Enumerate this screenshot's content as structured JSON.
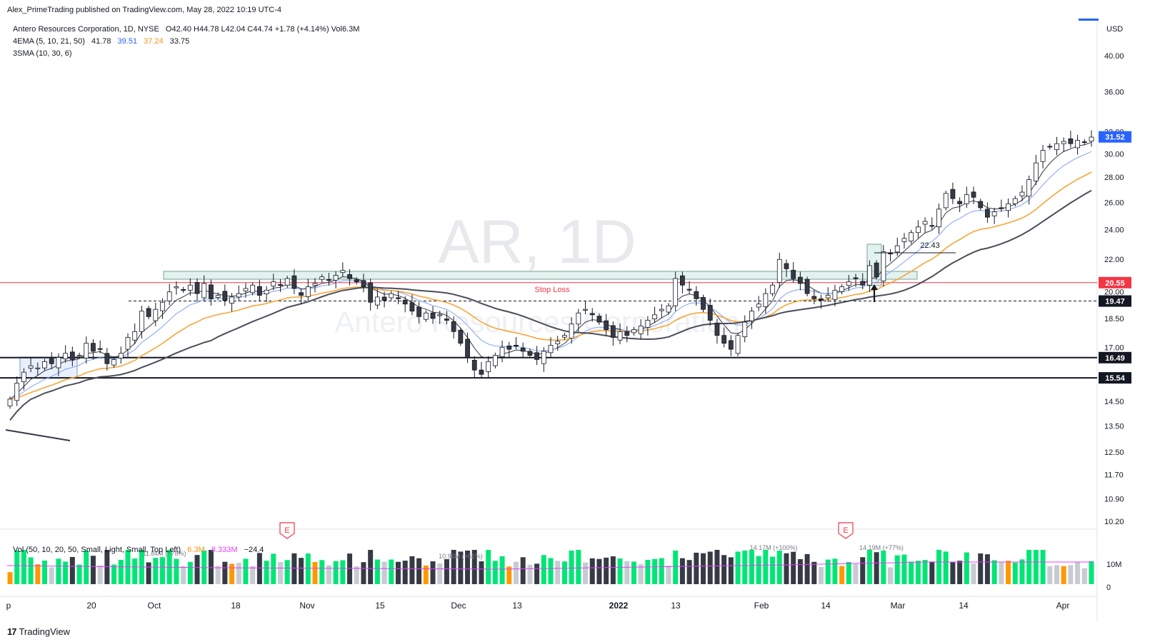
{
  "publisher_line": "Alex_PrimeTrading published on TradingView.com, May 28, 2022 10:19 UTC-4",
  "legend": {
    "symbol_line": {
      "name": "Antero Resources Corporation, 1D, NYSE",
      "ohlc": "O42.40  H44.78  L42.04  C44.74  +1.78 (+4.14%)  Vol6.3M"
    },
    "ema": {
      "label": "4EMA (5, 10, 21, 50)",
      "values": [
        "41.78",
        "39.51",
        "37.24",
        "33.75"
      ],
      "colors": [
        "#131722",
        "#2962ff",
        "#f7931a",
        "#131722"
      ]
    },
    "sma": {
      "label": "3SMA (10, 30, 6)"
    }
  },
  "watermark": {
    "symbol": "AR, 1D",
    "name": "Antero Resources Corporation"
  },
  "currency": "USD",
  "annotations": {
    "stop_loss": "Stop Loss",
    "target_value": "22.43"
  },
  "price_scale": {
    "ticks": [
      "40.00",
      "36.00",
      "32.00",
      "30.00",
      "28.00",
      "26.00",
      "24.00",
      "22.00",
      "20.00",
      "18.50",
      "17.00",
      "14.50",
      "13.50",
      "12.50",
      "11.70",
      "10.90",
      "10.20"
    ],
    "badges": [
      {
        "value": "31.52",
        "color": "#2962ff"
      },
      {
        "value": "20.55",
        "color": "#f23645"
      },
      {
        "value": "19.47",
        "color": "#131722"
      },
      {
        "value": "16.49",
        "color": "#131722"
      },
      {
        "value": "15.54",
        "color": "#131722"
      }
    ]
  },
  "volume": {
    "legend": {
      "label": "Vol (50, 10, 20, 50, Small, Light, Small, Top Left)",
      "values": [
        "6.3M",
        "8.333M",
        "−24.4"
      ],
      "colors": [
        "#f7931a",
        "#e040fb",
        "#131722"
      ]
    },
    "scale_ticks": [
      "10M",
      "0"
    ],
    "callouts": [
      "11.84M (+78%)",
      "10.96M (+61%)",
      "14.17M (+100%)",
      "14.19M (+77%)"
    ],
    "colors": {
      "up_strong": "#00e676",
      "down_strong": "#363a45",
      "low": "#ff9800",
      "neutral": "#c8cbd2"
    }
  },
  "earnings_markers": [
    "E",
    "E"
  ],
  "time_axis": [
    "p",
    "20",
    "Oct",
    "18",
    "Nov",
    "15",
    "Dec",
    "13",
    "2022",
    "13",
    "Feb",
    "14",
    "Mar",
    "14",
    "Apr"
  ],
  "footer_brand": "TradingView",
  "chart_data": {
    "type": "candlestick",
    "title": "Antero Resources Corporation, 1D, NYSE",
    "ylabel": "USD",
    "y_scale": "log",
    "ylim": [
      10.0,
      42.0
    ],
    "x_axis_labels": [
      "p",
      "20",
      "Oct",
      "18",
      "Nov",
      "15",
      "Dec",
      "13",
      "2022",
      "13",
      "Feb",
      "14",
      "Mar",
      "14",
      "Apr"
    ],
    "x_tick_dates": [
      "2021-09-01",
      "2021-09-20",
      "2021-10-01",
      "2021-10-18",
      "2021-11-01",
      "2021-11-15",
      "2021-12-01",
      "2021-12-13",
      "2022-01-01",
      "2022-01-13",
      "2022-02-01",
      "2022-02-14",
      "2022-03-01",
      "2022-03-14",
      "2022-04-01"
    ],
    "closes": [
      14.6,
      15.3,
      15.8,
      16.1,
      16.0,
      16.3,
      16.2,
      16.5,
      16.7,
      16.4,
      16.6,
      17.2,
      16.8,
      16.9,
      16.2,
      16.4,
      16.7,
      17.5,
      17.8,
      18.9,
      18.6,
      19.0,
      19.4,
      20.0,
      20.3,
      20.1,
      20.4,
      19.9,
      20.5,
      19.6,
      19.8,
      19.5,
      19.7,
      19.9,
      20.2,
      20.4,
      19.8,
      20.1,
      20.6,
      20.4,
      20.8,
      20.2,
      19.8,
      20.3,
      20.5,
      20.9,
      20.7,
      21.0,
      21.3,
      20.8,
      20.6,
      20.3,
      19.4,
      19.7,
      19.5,
      19.9,
      19.6,
      19.3,
      18.9,
      18.6,
      18.8,
      18.5,
      18.7,
      18.4,
      17.8,
      17.2,
      16.5,
      15.9,
      15.7,
      16.3,
      16.6,
      17.0,
      16.9,
      17.1,
      16.8,
      16.6,
      16.4,
      16.8,
      17.1,
      17.3,
      17.6,
      18.2,
      18.8,
      19.0,
      18.7,
      18.3,
      17.9,
      17.5,
      17.8,
      17.6,
      17.9,
      18.1,
      18.4,
      18.7,
      19.0,
      19.2,
      20.8,
      20.4,
      20.1,
      19.6,
      19.0,
      18.4,
      17.6,
      17.2,
      16.9,
      17.6,
      18.3,
      18.9,
      19.3,
      19.9,
      20.4,
      22.0,
      21.4,
      20.8,
      20.5,
      19.9,
      19.6,
      19.5,
      19.8,
      20.1,
      20.3,
      20.6,
      20.8,
      20.4,
      21.6,
      20.9,
      22.5,
      22.4,
      22.9,
      23.4,
      23.8,
      24.2,
      24.6,
      24.3,
      25.5,
      26.7,
      26.3,
      25.9,
      26.6,
      26.4,
      25.6,
      24.9,
      25.3,
      25.6,
      25.9,
      26.3,
      26.8,
      27.8,
      29.2,
      30.3,
      30.6,
      30.9,
      31.1,
      30.9,
      31.2,
      31.0,
      31.5
    ],
    "series": [
      {
        "name": "EMA 5",
        "last": 41.78
      },
      {
        "name": "EMA 10",
        "last": 39.51
      },
      {
        "name": "EMA 21",
        "last": 37.24
      },
      {
        "name": "EMA 50",
        "last": 33.75
      }
    ],
    "horizontal_levels": [
      {
        "value": 20.55,
        "label": "Stop Loss",
        "style": "solid"
      },
      {
        "value": 19.47,
        "style": "dashed"
      },
      {
        "value": 16.49,
        "style": "solid"
      },
      {
        "value": 15.54,
        "style": "solid"
      },
      {
        "value": 22.43,
        "style": "solid"
      }
    ],
    "last_price": 31.52,
    "grid": false,
    "legend_position": "top-left"
  }
}
